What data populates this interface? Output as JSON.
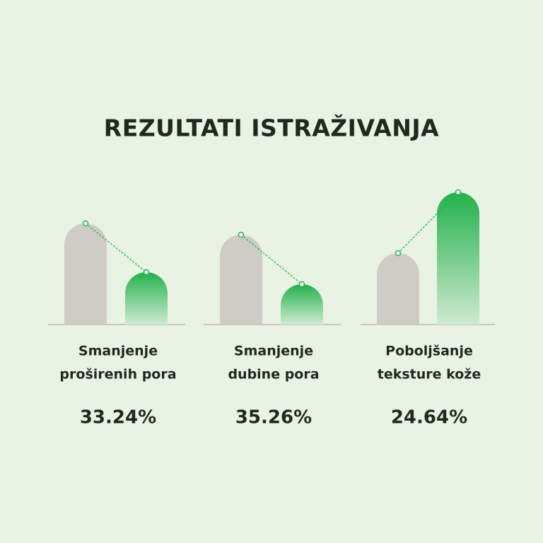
{
  "title": "REZULTATI ISTRAŽIVANJA",
  "chart_data": [
    {
      "type": "bar",
      "title": [
        "Smanjenje",
        "proširenih pora"
      ],
      "annotation": "33.24%",
      "categories": [
        null,
        null
      ],
      "values": [
        143,
        74
      ],
      "colors": [
        "#cfccc6",
        "url(#greenGrad)"
      ],
      "ylim": [
        0,
        200
      ]
    },
    {
      "type": "bar",
      "title": [
        "Smanjenje",
        "dubine pora"
      ],
      "annotation": "35.26%",
      "categories": [
        null,
        null
      ],
      "values": [
        127,
        57
      ],
      "colors": [
        "#cfccc6",
        "url(#greenGrad)"
      ],
      "ylim": [
        0,
        200
      ]
    },
    {
      "type": "bar",
      "title": [
        "Poboljšanje",
        "teksture kože"
      ],
      "annotation": "24.64%",
      "categories": [
        null,
        null
      ],
      "values": [
        101,
        187
      ],
      "colors": [
        "#cfccc6",
        "url(#greenGrad)"
      ],
      "ylim": [
        0,
        200
      ]
    }
  ]
}
